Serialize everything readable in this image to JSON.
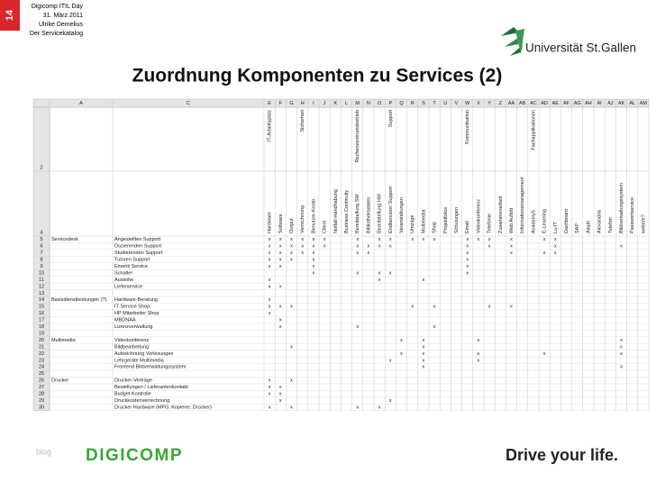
{
  "header": {
    "slide_number": "14",
    "lines": [
      "Digicomp ITIL Day",
      "31. März 2011",
      "Ulrike Demelius",
      "Der Servicekatalog"
    ],
    "logo": "Universität St.Gallen"
  },
  "title": "Zuordnung Komponenten zu Services (2)",
  "sheet": {
    "fixed_columns": [
      "A",
      "C"
    ],
    "group_row_number": "2",
    "header_row_number": "4",
    "columns": [
      {
        "letter": "E",
        "group": "IT-Arbeitsplatz",
        "component": "Hardware"
      },
      {
        "letter": "F",
        "component": "Software"
      },
      {
        "letter": "G",
        "component": "Output"
      },
      {
        "letter": "H",
        "group": "Sicherheit",
        "component": "Verrechnung"
      },
      {
        "letter": "I",
        "component": "Benutzer-Konto"
      },
      {
        "letter": "J",
        "component": "Client"
      },
      {
        "letter": "K",
        "component": "Notfall-Handhabung"
      },
      {
        "letter": "L",
        "component": "Business Continuity"
      },
      {
        "letter": "M",
        "group": "Rechenzentrumsbetrieb",
        "component": "Bereitstellung SW"
      },
      {
        "letter": "N",
        "component": "Bibliotheksdaten"
      },
      {
        "letter": "O",
        "component": "Bereitstellung HW"
      },
      {
        "letter": "P",
        "group": "Support",
        "component": "Endbenutzer Support"
      },
      {
        "letter": "Q",
        "component": "Veranstaltungen"
      },
      {
        "letter": "R",
        "component": "Umzüge"
      },
      {
        "letter": "S",
        "component": "Multimedia"
      },
      {
        "letter": "T",
        "component": "Shop"
      },
      {
        "letter": "U",
        "component": "Projektfotos"
      },
      {
        "letter": "V",
        "component": "Schulungen"
      },
      {
        "letter": "W",
        "group": "Kommunikation",
        "component": "Email"
      },
      {
        "letter": "X",
        "component": "Videokonferenz"
      },
      {
        "letter": "Y",
        "component": "Telefonie"
      },
      {
        "letter": "Z",
        "component": "Zusammenarbeit"
      },
      {
        "letter": "AA",
        "component": "Web Auftritt"
      },
      {
        "letter": "AB",
        "component": "Informationsmanagement"
      },
      {
        "letter": "AC",
        "group": "Fachapplikationen",
        "component": "Academy5"
      },
      {
        "letter": "AD",
        "component": "E-Learning"
      },
      {
        "letter": "AE",
        "component": "Lu-IT"
      },
      {
        "letter": "AF",
        "component": "Dashboard"
      },
      {
        "letter": "AG",
        "component": "SAP"
      },
      {
        "letter": "AH",
        "component": "Aleph"
      },
      {
        "letter": "AI",
        "component": "Alexandria"
      },
      {
        "letter": "AJ",
        "component": "Telefon"
      },
      {
        "letter": "AK",
        "component": "Bildverwaltungssystem"
      },
      {
        "letter": "AL",
        "component": "Passwortservice"
      },
      {
        "letter": "AM",
        "component": "weitere?"
      }
    ],
    "rows": [
      {
        "number": "5",
        "group": "Servicedesk",
        "service": "Angestellten Support",
        "cells": {
          "E": "x",
          "F": "x",
          "G": "x",
          "H": "x",
          "I": "x",
          "J": "x",
          "M": "x",
          "O": "x",
          "P": "x",
          "R": "x",
          "S": "x",
          "T": "x",
          "W": "x",
          "X": "x",
          "Y": "x",
          "AA": "x",
          "AD": "x",
          "AE": "x"
        }
      },
      {
        "number": "6",
        "service": "Dozierenden Support",
        "cells": {
          "E": "x",
          "F": "x",
          "G": "x",
          "H": "x",
          "I": "x",
          "J": "x",
          "M": "x",
          "N": "x",
          "O": "x",
          "P": "x",
          "W": "x",
          "Y": "x",
          "AA": "x",
          "AE": "x",
          "AK": "x"
        }
      },
      {
        "number": "7",
        "service": "Studierenden Support",
        "cells": {
          "E": "x",
          "F": "x",
          "G": "x",
          "H": "x",
          "I": "x",
          "M": "x",
          "N": "x",
          "W": "x",
          "AA": "x",
          "AD": "x",
          "AE": "x"
        }
      },
      {
        "number": "8",
        "service": "Tutoren Support",
        "cells": {
          "E": "x",
          "F": "x",
          "G": "x",
          "I": "x",
          "W": "x"
        }
      },
      {
        "number": "9",
        "service": "Emeriti Service",
        "cells": {
          "E": "x",
          "F": "x",
          "I": "x",
          "W": "x"
        }
      },
      {
        "number": "10",
        "service": "Schalter",
        "cells": {
          "I": "x",
          "M": "x",
          "O": "x",
          "P": "x",
          "W": "x"
        }
      },
      {
        "number": "11",
        "service": "Ausleihe",
        "cells": {
          "E": "x",
          "O": "x",
          "S": "x"
        }
      },
      {
        "number": "12",
        "service": "Lieferservice",
        "cells": {
          "E": "x",
          "F": "x"
        }
      },
      {
        "number": "13"
      },
      {
        "number": "14",
        "group": "Basisdienstleistungen (?)",
        "service": "Hardware-Beratung",
        "cells": {
          "E": "x"
        }
      },
      {
        "number": "15",
        "service": "IT Service Shop",
        "cells": {
          "E": "x",
          "F": "x",
          "G": "x",
          "R": "x",
          "T": "x",
          "Y": "x",
          "AA": "x"
        }
      },
      {
        "number": "16",
        "service": "HP Mitarbeiter Shop",
        "cells": {
          "E": "x"
        }
      },
      {
        "number": "17",
        "service": "MBDNAA",
        "cells": {
          "F": "x"
        }
      },
      {
        "number": "18",
        "service": "Lizenzverwaltung",
        "cells": {
          "F": "x",
          "M": "x",
          "T": "x"
        }
      },
      {
        "number": "19"
      },
      {
        "number": "20",
        "group": "Multimedia",
        "service": "Videokonferenz",
        "cells": {
          "Q": "x",
          "S": "x",
          "X": "x",
          "AK": "x"
        }
      },
      {
        "number": "21",
        "service": "Bildbearbeitung",
        "cells": {
          "G": "x",
          "S": "x",
          "AK": "x"
        }
      },
      {
        "number": "22",
        "service": "Aufzeichnung Vorlesungen",
        "cells": {
          "Q": "x",
          "S": "x",
          "X": "x",
          "AD": "x",
          "AK": "x"
        }
      },
      {
        "number": "23",
        "service": "Lehrgeräte Multimedia",
        "cells": {
          "P": "x",
          "S": "x",
          "X": "x"
        }
      },
      {
        "number": "24",
        "service": "Frontend Bildverwaltungssystem",
        "cells": {
          "S": "x",
          "AK": "x"
        }
      },
      {
        "number": "25"
      },
      {
        "number": "26",
        "group": "Drucker",
        "service": "Drucker-Verträge",
        "cells": {
          "E": "x",
          "G": "x"
        }
      },
      {
        "number": "27",
        "service": "Bestellungen / Lieferantenkontakt",
        "cells": {
          "E": "x",
          "F": "x"
        }
      },
      {
        "number": "28",
        "service": "Budget Kontrolle",
        "cells": {
          "E": "x",
          "F": "x"
        }
      },
      {
        "number": "29",
        "service": "Druckkostenverrechnung",
        "cells": {
          "F": "x",
          "P": "x"
        }
      },
      {
        "number": "30",
        "service": "Drucker Hardware (MFG, Kopierer, Drucker)",
        "cells": {
          "E": "x",
          "G": "x",
          "M": "x",
          "O": "x"
        }
      }
    ]
  },
  "footer": {
    "blog": "blog",
    "brand": "DIGICOMP",
    "slogan": "Drive your life."
  }
}
